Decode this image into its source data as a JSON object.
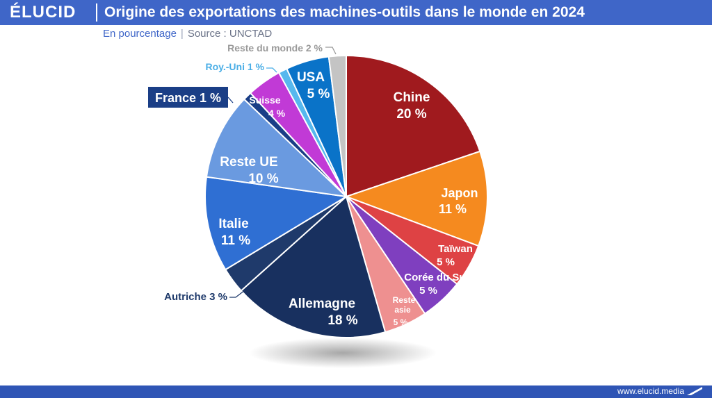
{
  "header": {
    "logo": "ÉLUCID",
    "title": "Origine des exportations des machines-outils dans le monde en 2024"
  },
  "subtitle": {
    "unit": "En pourcentage",
    "separator": "|",
    "source": "Source : UNCTAD"
  },
  "footer": {
    "url": "www.elucid.media"
  },
  "colors": {
    "brand": "#3f66c8",
    "footer": "#2f55b5"
  },
  "chart_data": {
    "type": "pie",
    "unit": "%",
    "slices": [
      {
        "label": "Chine",
        "value": 20,
        "value_label": "20 %",
        "color": "#a01a1e"
      },
      {
        "label": "Japon",
        "value": 11,
        "value_label": "11 %",
        "color": "#f58a1f"
      },
      {
        "label": "Taïwan",
        "value": 5,
        "value_label": "5 %",
        "color": "#de4244"
      },
      {
        "label": "Corée du Sud",
        "value": 5,
        "value_label": "5 %",
        "color": "#7f3fbf"
      },
      {
        "label": "Reste asie",
        "value": 5,
        "value_label": "5 %",
        "color": "#ee9090"
      },
      {
        "label": "Allemagne",
        "value": 18,
        "value_label": "18 %",
        "color": "#18305f"
      },
      {
        "label": "Autriche",
        "value": 3,
        "value_label": "Autriche 3 %",
        "color": "#1f3a6b"
      },
      {
        "label": "Italie",
        "value": 11,
        "value_label": "11 %",
        "color": "#2f6fd3"
      },
      {
        "label": "Reste UE",
        "value": 10,
        "value_label": "10 %",
        "color": "#6a9ae0"
      },
      {
        "label": "France",
        "value": 1,
        "value_label": "France 1 %",
        "color": "#1a3e86"
      },
      {
        "label": "Suisse",
        "value": 4,
        "value_label": "4 %",
        "color": "#c13ad6"
      },
      {
        "label": "Roy.-Uni",
        "value": 1,
        "value_label": "Roy.-Uni 1 %",
        "color": "#56b8ee"
      },
      {
        "label": "USA",
        "value": 5,
        "value_label": "5 %",
        "color": "#0a73c8"
      },
      {
        "label": "Reste du monde",
        "value": 2,
        "value_label": "Reste du monde 2 %",
        "color": "#c4c4c4"
      }
    ]
  }
}
